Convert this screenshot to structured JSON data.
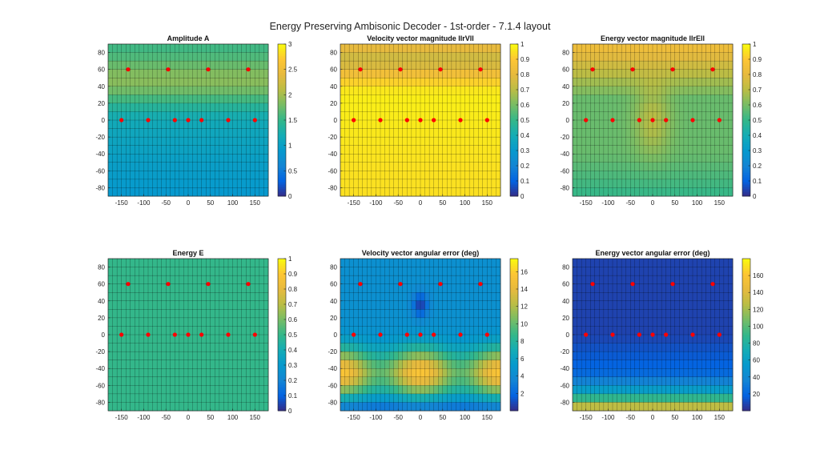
{
  "figure": {
    "suptitle": "Energy Preserving Ambisonic Decoder - 1st-order - 7.1.4 layout"
  },
  "chart_data": [
    {
      "type": "heatmap",
      "title": "Amplitude A",
      "x": {
        "lim": [
          -180,
          180
        ],
        "ticks": [
          -150,
          -100,
          -50,
          0,
          50,
          100,
          150
        ]
      },
      "y": {
        "lim": [
          -90,
          90
        ],
        "ticks": [
          -80,
          -60,
          -40,
          -20,
          0,
          20,
          40,
          60,
          80
        ]
      },
      "colorbar": {
        "lim": [
          0,
          3
        ],
        "ticks": [
          0,
          0.5,
          1,
          1.5,
          2,
          2.5,
          3
        ]
      },
      "field": "amplitude",
      "colormap": "parula",
      "grid": true,
      "speakers": [
        {
          "az": -150,
          "el": 0
        },
        {
          "az": -90,
          "el": 0
        },
        {
          "az": -30,
          "el": 0
        },
        {
          "az": 0,
          "el": 0
        },
        {
          "az": 30,
          "el": 0
        },
        {
          "az": 90,
          "el": 0
        },
        {
          "az": 150,
          "el": 0
        },
        {
          "az": -135,
          "el": 60
        },
        {
          "az": -45,
          "el": 60
        },
        {
          "az": 45,
          "el": 60
        },
        {
          "az": 135,
          "el": 60
        }
      ],
      "speaker_color": "#ff0000"
    },
    {
      "type": "heatmap",
      "title": "Velocity vector magnitude llrVll",
      "x": {
        "lim": [
          -180,
          180
        ],
        "ticks": [
          -150,
          -100,
          -50,
          0,
          50,
          100,
          150
        ]
      },
      "y": {
        "lim": [
          -90,
          90
        ],
        "ticks": [
          -80,
          -60,
          -40,
          -20,
          0,
          20,
          40,
          60,
          80
        ]
      },
      "colorbar": {
        "lim": [
          0,
          1
        ],
        "ticks": [
          0,
          0.1,
          0.2,
          0.3,
          0.4,
          0.5,
          0.6,
          0.7,
          0.8,
          0.9,
          1
        ]
      },
      "field": "rv",
      "colormap": "parula",
      "grid": true,
      "speakers": [
        {
          "az": -150,
          "el": 0
        },
        {
          "az": -90,
          "el": 0
        },
        {
          "az": -30,
          "el": 0
        },
        {
          "az": 0,
          "el": 0
        },
        {
          "az": 30,
          "el": 0
        },
        {
          "az": 90,
          "el": 0
        },
        {
          "az": 150,
          "el": 0
        },
        {
          "az": -135,
          "el": 60
        },
        {
          "az": -45,
          "el": 60
        },
        {
          "az": 45,
          "el": 60
        },
        {
          "az": 135,
          "el": 60
        }
      ],
      "speaker_color": "#ff0000"
    },
    {
      "type": "heatmap",
      "title": "Energy vector magnitude llrEll",
      "x": {
        "lim": [
          -180,
          180
        ],
        "ticks": [
          -150,
          -100,
          -50,
          0,
          50,
          100,
          150
        ]
      },
      "y": {
        "lim": [
          -90,
          90
        ],
        "ticks": [
          -80,
          -60,
          -40,
          -20,
          0,
          20,
          40,
          60,
          80
        ]
      },
      "colorbar": {
        "lim": [
          0,
          1
        ],
        "ticks": [
          0,
          0.1,
          0.2,
          0.3,
          0.4,
          0.5,
          0.6,
          0.7,
          0.8,
          0.9,
          1
        ]
      },
      "field": "re",
      "colormap": "parula",
      "grid": true,
      "speakers": [
        {
          "az": -150,
          "el": 0
        },
        {
          "az": -90,
          "el": 0
        },
        {
          "az": -30,
          "el": 0
        },
        {
          "az": 0,
          "el": 0
        },
        {
          "az": 30,
          "el": 0
        },
        {
          "az": 90,
          "el": 0
        },
        {
          "az": 150,
          "el": 0
        },
        {
          "az": -135,
          "el": 60
        },
        {
          "az": -45,
          "el": 60
        },
        {
          "az": 45,
          "el": 60
        },
        {
          "az": 135,
          "el": 60
        }
      ],
      "speaker_color": "#ff0000"
    },
    {
      "type": "heatmap",
      "title": "Energy E",
      "x": {
        "lim": [
          -180,
          180
        ],
        "ticks": [
          -150,
          -100,
          -50,
          0,
          50,
          100,
          150
        ]
      },
      "y": {
        "lim": [
          -90,
          90
        ],
        "ticks": [
          -80,
          -60,
          -40,
          -20,
          0,
          20,
          40,
          60,
          80
        ]
      },
      "colorbar": {
        "lim": [
          0,
          1
        ],
        "ticks": [
          0,
          0.1,
          0.2,
          0.3,
          0.4,
          0.5,
          0.6,
          0.7,
          0.8,
          0.9,
          1
        ]
      },
      "field": "energy",
      "colormap": "parula",
      "grid": true,
      "speakers": [
        {
          "az": -150,
          "el": 0
        },
        {
          "az": -90,
          "el": 0
        },
        {
          "az": -30,
          "el": 0
        },
        {
          "az": 0,
          "el": 0
        },
        {
          "az": 30,
          "el": 0
        },
        {
          "az": 90,
          "el": 0
        },
        {
          "az": 150,
          "el": 0
        },
        {
          "az": -135,
          "el": 60
        },
        {
          "az": -45,
          "el": 60
        },
        {
          "az": 45,
          "el": 60
        },
        {
          "az": 135,
          "el": 60
        }
      ],
      "speaker_color": "#ff0000"
    },
    {
      "type": "heatmap",
      "title": "Velocity vector angular error (deg)",
      "x": {
        "lim": [
          -180,
          180
        ],
        "ticks": [
          -150,
          -100,
          -50,
          0,
          50,
          100,
          150
        ]
      },
      "y": {
        "lim": [
          -90,
          90
        ],
        "ticks": [
          -80,
          -60,
          -40,
          -20,
          0,
          20,
          40,
          60,
          80
        ]
      },
      "colorbar": {
        "lim": [
          0,
          17.5
        ],
        "ticks": [
          2,
          4,
          6,
          8,
          10,
          12,
          14,
          16
        ]
      },
      "field": "verr",
      "colormap": "parula",
      "grid": true,
      "speakers": [
        {
          "az": -150,
          "el": 0
        },
        {
          "az": -90,
          "el": 0
        },
        {
          "az": -30,
          "el": 0
        },
        {
          "az": 0,
          "el": 0
        },
        {
          "az": 30,
          "el": 0
        },
        {
          "az": 90,
          "el": 0
        },
        {
          "az": 150,
          "el": 0
        },
        {
          "az": -135,
          "el": 60
        },
        {
          "az": -45,
          "el": 60
        },
        {
          "az": 45,
          "el": 60
        },
        {
          "az": 135,
          "el": 60
        }
      ],
      "speaker_color": "#ff0000"
    },
    {
      "type": "heatmap",
      "title": "Energy vector angular error (deg)",
      "x": {
        "lim": [
          -180,
          180
        ],
        "ticks": [
          -150,
          -100,
          -50,
          0,
          50,
          100,
          150
        ]
      },
      "y": {
        "lim": [
          -90,
          90
        ],
        "ticks": [
          -80,
          -60,
          -40,
          -20,
          0,
          20,
          40,
          60,
          80
        ]
      },
      "colorbar": {
        "lim": [
          0,
          180
        ],
        "ticks": [
          20,
          40,
          60,
          80,
          100,
          120,
          140,
          160
        ]
      },
      "field": "eerr",
      "colormap": "parula",
      "grid": true,
      "speakers": [
        {
          "az": -150,
          "el": 0
        },
        {
          "az": -90,
          "el": 0
        },
        {
          "az": -30,
          "el": 0
        },
        {
          "az": 0,
          "el": 0
        },
        {
          "az": 30,
          "el": 0
        },
        {
          "az": 90,
          "el": 0
        },
        {
          "az": 150,
          "el": 0
        },
        {
          "az": -135,
          "el": 60
        },
        {
          "az": -45,
          "el": 60
        },
        {
          "az": 45,
          "el": 60
        },
        {
          "az": 135,
          "el": 60
        }
      ],
      "speaker_color": "#ff0000"
    }
  ]
}
